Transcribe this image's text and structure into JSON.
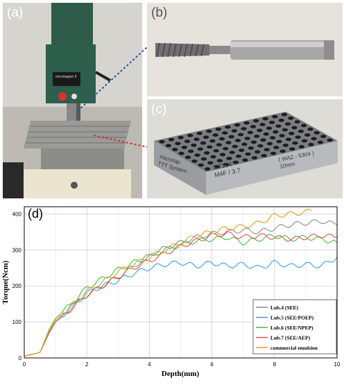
{
  "panels": {
    "a": {
      "label": "(a)",
      "device_text": "microtapper II"
    },
    "b": {
      "label": "(b)"
    },
    "c": {
      "label": "(c)",
      "block_text": [
        "microtap",
        "TTT System",
        "3.7164",
        "M4F / 3.7",
        "( WAZ - 5304 )",
        "10mm"
      ]
    },
    "d": {
      "label": "(d)"
    }
  },
  "colors": {
    "lub4": "#8c8c8c",
    "lub5": "#3a9fe0",
    "lub6": "#3fbf3f",
    "lub7": "#e05050",
    "commercial": "#e0a020"
  },
  "chart_data": {
    "type": "line",
    "xlabel": "Depth(mm)",
    "ylabel": "Torque(Ncm)",
    "xlim": [
      0,
      10
    ],
    "ylim": [
      0,
      420
    ],
    "xticks": [
      "0",
      "2",
      "4",
      "6",
      "8",
      "10"
    ],
    "yticks": [
      "0",
      "100",
      "200",
      "300",
      "400"
    ],
    "grid": true,
    "legend_position": "right",
    "series": [
      {
        "name": "Lub.4 (SEE)",
        "color": "#8c8c8c",
        "x": [
          0,
          0.5,
          0.8,
          1,
          1.5,
          2,
          2.5,
          3,
          3.5,
          4,
          4.5,
          5,
          5.5,
          6,
          6.5,
          7,
          7.5,
          8,
          8.5,
          9,
          9.5,
          10
        ],
        "y": [
          5,
          15,
          75,
          100,
          135,
          175,
          200,
          225,
          255,
          285,
          305,
          320,
          335,
          345,
          350,
          355,
          350,
          360,
          370,
          375,
          380,
          370
        ]
      },
      {
        "name": "Lub.5 (SEE/POEP)",
        "color": "#3a9fe0",
        "x": [
          0,
          0.5,
          0.8,
          1,
          1.5,
          2,
          2.5,
          3,
          3.5,
          4,
          4.5,
          5,
          5.5,
          6,
          6.5,
          7,
          7.5,
          8,
          8.5,
          9,
          9.5,
          10
        ],
        "y": [
          5,
          15,
          70,
          100,
          140,
          180,
          200,
          215,
          235,
          250,
          260,
          265,
          255,
          265,
          255,
          260,
          250,
          265,
          255,
          260,
          255,
          280
        ]
      },
      {
        "name": "Lub.6 (SEE/NPEP)",
        "color": "#3fbf3f",
        "x": [
          0,
          0.5,
          0.8,
          1,
          1.5,
          2,
          2.5,
          3,
          3.5,
          4,
          4.5,
          5,
          5.5,
          6,
          6.5,
          7,
          7.5,
          8,
          8.5,
          9,
          9.5,
          10
        ],
        "y": [
          5,
          15,
          80,
          110,
          150,
          195,
          220,
          245,
          265,
          280,
          300,
          315,
          325,
          330,
          335,
          320,
          330,
          340,
          330,
          335,
          330,
          320
        ]
      },
      {
        "name": "Lub.7 (SEE/AEP)",
        "color": "#e05050",
        "x": [
          0,
          0.5,
          0.8,
          1,
          1.5,
          2,
          2.5,
          3,
          3.5,
          4,
          4.5,
          5,
          5.5,
          6,
          6.5,
          7,
          7.5,
          8,
          8.5,
          9,
          9.5,
          10
        ],
        "y": [
          5,
          15,
          70,
          100,
          140,
          175,
          200,
          225,
          250,
          270,
          290,
          310,
          325,
          340,
          345,
          335,
          340,
          335,
          330,
          335,
          340,
          335
        ]
      },
      {
        "name": "commercial emulsion",
        "color": "#e0a020",
        "x": [
          0,
          0.5,
          0.8,
          1,
          1.5,
          2,
          2.5,
          3,
          3.5,
          4,
          4.5,
          5,
          5.5,
          6,
          6.5,
          7,
          7.5,
          8,
          8.5,
          9,
          9.2
        ],
        "y": [
          5,
          15,
          75,
          105,
          145,
          185,
          210,
          240,
          260,
          280,
          300,
          320,
          340,
          350,
          360,
          365,
          375,
          395,
          400,
          405,
          410
        ]
      }
    ]
  }
}
